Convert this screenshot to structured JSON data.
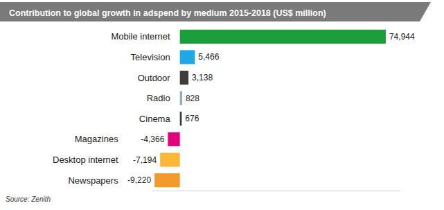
{
  "chart_data": {
    "type": "bar",
    "orientation": "horizontal",
    "title": "Contribution to global growth in adspend by medium 2015-2018 (US$ million)",
    "source": "Source: Zenith",
    "categories": [
      "Mobile internet",
      "Television",
      "Outdoor",
      "Radio",
      "Cinema",
      "Magazines",
      "Desktop internet",
      "Newspapers"
    ],
    "values": [
      74944,
      5466,
      3138,
      828,
      676,
      -4366,
      -7194,
      -9220
    ],
    "value_labels": [
      "74,944",
      "5,466",
      "3,138",
      "828",
      "676",
      "-4,366",
      "-7,194",
      "-9,220"
    ],
    "colors": [
      "#1b9f3b",
      "#1fa7e6",
      "#3d3d3d",
      "#8eabbf",
      "#3a3a3a",
      "#e4007c",
      "#fbb735",
      "#f39a2c"
    ],
    "xlim": [
      -10000,
      80000
    ],
    "xticks": [],
    "grid": false,
    "data_labels": true,
    "tick_labels": "y"
  }
}
